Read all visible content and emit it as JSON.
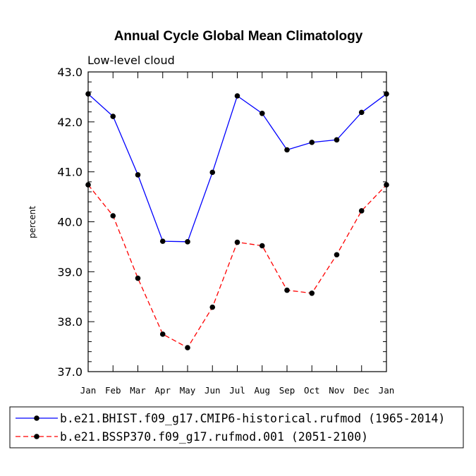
{
  "chart_data": {
    "type": "line",
    "title": "Annual Cycle Global Mean Climatology",
    "subtitle": "Low-level cloud",
    "xlabel": "",
    "ylabel": "percent",
    "categories": [
      "Jan",
      "Feb",
      "Mar",
      "Apr",
      "May",
      "Jun",
      "Jul",
      "Aug",
      "Sep",
      "Oct",
      "Nov",
      "Dec",
      "Jan"
    ],
    "ylim": [
      37.0,
      43.0
    ],
    "yticks": [
      "37.0",
      "38.0",
      "39.0",
      "40.0",
      "41.0",
      "42.0",
      "43.0"
    ],
    "grid": false,
    "legend_position": "bottom",
    "series": [
      {
        "name": "b.e21.BHIST.f09_g17.CMIP6-historical.rufmod (1965-2014)",
        "color": "#0000ff",
        "dash": "solid",
        "values": [
          42.56,
          42.11,
          40.94,
          39.61,
          39.6,
          40.99,
          42.52,
          42.17,
          41.44,
          41.59,
          41.64,
          42.19,
          42.56
        ]
      },
      {
        "name": "b.e21.BSSP370.f09_g17.rufmod.001 (2051-2100)",
        "color": "#ff0000",
        "dash": "dashed",
        "values": [
          40.74,
          40.12,
          38.87,
          37.75,
          37.48,
          38.29,
          39.59,
          39.52,
          38.63,
          38.57,
          39.34,
          40.22,
          40.74
        ]
      }
    ]
  }
}
